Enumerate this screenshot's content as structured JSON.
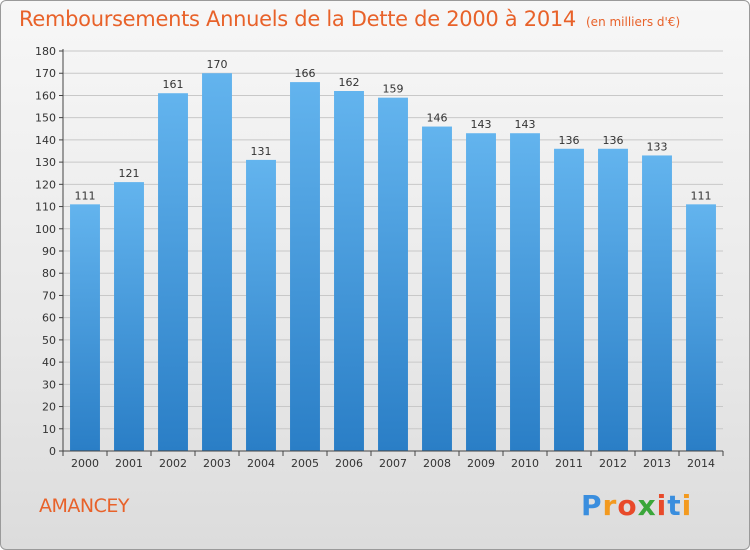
{
  "chart_data": {
    "type": "bar",
    "title": "Remboursements Annuels de la Dette de 2000 à 2014",
    "unit_note": "(en milliers d'€)",
    "categories": [
      "2000",
      "2001",
      "2002",
      "2003",
      "2004",
      "2005",
      "2006",
      "2007",
      "2008",
      "2009",
      "2010",
      "2011",
      "2012",
      "2013",
      "2014"
    ],
    "values": [
      111,
      121,
      161,
      170,
      131,
      166,
      162,
      159,
      146,
      143,
      143,
      136,
      136,
      133,
      111
    ],
    "ylim": [
      0,
      180
    ],
    "ytick_step": 10,
    "grid": true,
    "xlabel": "",
    "ylabel": ""
  },
  "commune": "AMANCEY",
  "brand": {
    "letters": [
      "P",
      "r",
      "o",
      "x",
      "i",
      "t",
      "i"
    ],
    "colors": [
      "#3a8ede",
      "#f39a1f",
      "#e84a2a",
      "#3aa63a",
      "#e84a2a",
      "#3a8ede",
      "#f39a1f"
    ]
  },
  "colors": {
    "title": "#e8622a",
    "bar_light": "#63b4ee",
    "bar_dark": "#2a7ec6",
    "grid": "#c8c8c8",
    "axis": "#444444"
  }
}
